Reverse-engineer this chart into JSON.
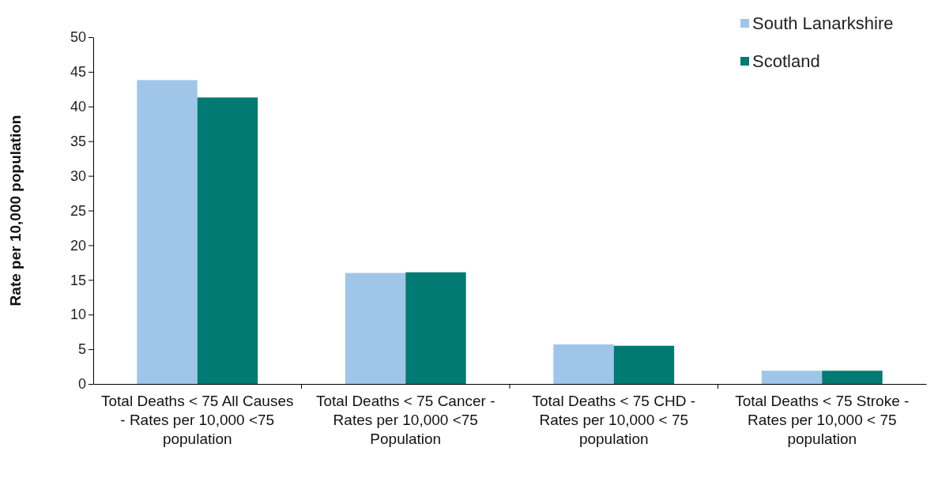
{
  "chart_data": {
    "type": "bar",
    "ylabel": "Rate per 10,000 population",
    "categories": [
      "Total Deaths < 75 All Causes - Rates per 10,000  <75 population",
      "Total Deaths < 75 Cancer - Rates per 10,000 <75 Population",
      "Total Deaths < 75 CHD - Rates per 10,000 < 75 population",
      "Total Deaths < 75 Stroke - Rates per 10,000 < 75 population"
    ],
    "series": [
      {
        "name": "South Lanarkshire",
        "color": "#9fc6e8",
        "values": [
          43.8,
          16.0,
          5.7,
          1.9
        ]
      },
      {
        "name": "Scotland",
        "color": "#007a72",
        "values": [
          41.3,
          16.1,
          5.5,
          1.9
        ]
      }
    ],
    "ylim": [
      0,
      50
    ],
    "yticks": [
      0,
      5,
      10,
      15,
      20,
      25,
      30,
      35,
      40,
      45,
      50
    ],
    "grid": false,
    "legend": "top right"
  }
}
